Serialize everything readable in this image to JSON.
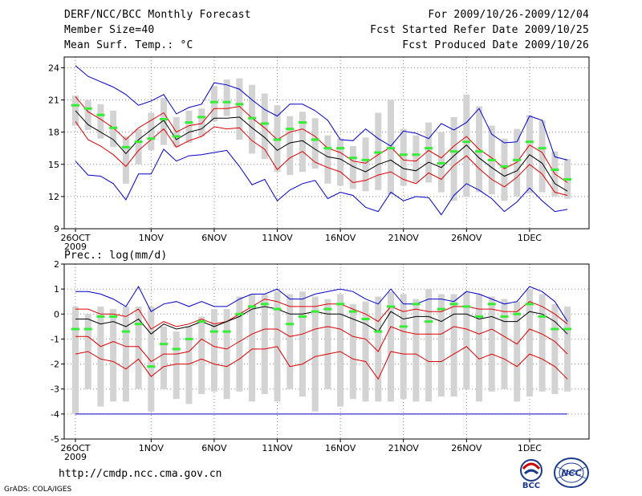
{
  "header": {
    "title": "DERF/NCC/BCC Monthly Forecast",
    "member_size": "Member Size=40",
    "variable": "Mean Surf. Temp.: °C",
    "period": "For 2009/10/26-2009/12/04",
    "started": "Fcst Started Refer Date 2009/10/25",
    "produced": "Fcst Produced Date 2009/10/26"
  },
  "footer": {
    "url": "http://cmdp.ncc.cma.gov.cn",
    "grads": "GrADS: COLA/IGES",
    "logo_bcc": "BCC",
    "logo_ncc": "NCC"
  },
  "colors": {
    "box": "#d3d3d3",
    "median": "#33ee33",
    "mean": "#000000",
    "spread": "#dd0000",
    "extreme": "#0000cc",
    "grid": "#888888"
  },
  "chart_data": [
    {
      "type": "line",
      "title": "Mean Surf. Temp.: °C",
      "ylim": [
        9,
        25
      ],
      "yticks": [
        9,
        12,
        15,
        18,
        21,
        24
      ],
      "x_start": 0,
      "xticks": [
        {
          "day": 0,
          "label": "26OCT",
          "sub": "2009"
        },
        {
          "day": 6,
          "label": "1NOV"
        },
        {
          "day": 11,
          "label": "6NOV"
        },
        {
          "day": 16,
          "label": "11NOV"
        },
        {
          "day": 21,
          "label": "16NOV"
        },
        {
          "day": 26,
          "label": "21NOV"
        },
        {
          "day": 31,
          "label": "26NOV"
        },
        {
          "day": 36,
          "label": "1DEC"
        }
      ],
      "grid": true,
      "days": [
        0,
        1,
        2,
        3,
        4,
        5,
        6,
        7,
        8,
        9,
        10,
        11,
        12,
        13,
        14,
        15,
        16,
        17,
        18,
        19,
        20,
        21,
        22,
        23,
        24,
        25,
        26,
        27,
        28,
        29,
        30,
        31,
        32,
        33,
        34,
        35,
        36,
        37,
        38,
        39
      ],
      "box_low": [
        18.6,
        18.2,
        17.4,
        16.6,
        13.2,
        15.0,
        16.3,
        16.8,
        16.6,
        17.0,
        17.6,
        19.0,
        19.5,
        17.3,
        16.0,
        15.5,
        14.3,
        14.0,
        14.3,
        14.6,
        13.2,
        13.0,
        12.7,
        12.5,
        12.6,
        12.2,
        13.0,
        13.3,
        13.3,
        12.4,
        11.6,
        12.0,
        12.4,
        12.2,
        11.6,
        12.0,
        12.3,
        12.4,
        12.0,
        11.8
      ],
      "box_high": [
        21.4,
        21.0,
        20.6,
        20.0,
        17.6,
        18.3,
        19.8,
        21.2,
        19.4,
        20.0,
        20.2,
        22.3,
        22.9,
        23.0,
        22.4,
        21.6,
        20.5,
        19.5,
        19.9,
        19.3,
        17.7,
        17.4,
        16.7,
        17.5,
        19.8,
        21.0,
        18.3,
        17.7,
        18.9,
        18.0,
        19.4,
        21.5,
        20.4,
        18.6,
        17.4,
        18.3,
        19.6,
        19.1,
        16.2,
        15.5
      ],
      "median": [
        20.5,
        20.2,
        19.6,
        18.4,
        16.6,
        17.1,
        17.4,
        19.2,
        17.6,
        18.9,
        19.4,
        20.8,
        20.8,
        20.6,
        19.3,
        18.8,
        17.3,
        18.3,
        18.9,
        17.3,
        16.5,
        16.5,
        15.6,
        15.4,
        16.1,
        16.5,
        15.9,
        15.9,
        16.5,
        15.1,
        16.2,
        17.1,
        16.2,
        15.4,
        14.8,
        15.4,
        17.1,
        16.5,
        14.5,
        13.6
      ],
      "series": [
        {
          "name": "max",
          "role": "extreme",
          "values": [
            24.2,
            23.2,
            22.7,
            22.2,
            21.5,
            20.5,
            20.9,
            21.5,
            19.7,
            20.3,
            20.6,
            22.6,
            22.4,
            22.0,
            21.0,
            20.1,
            19.5,
            20.6,
            20.6,
            20.0,
            19.1,
            17.3,
            17.2,
            18.3,
            17.4,
            16.7,
            18.1,
            17.9,
            17.4,
            18.8,
            18.2,
            18.9,
            20.2,
            17.8,
            17.0,
            17.1,
            19.5,
            19.1,
            15.7,
            15.4
          ]
        },
        {
          "name": "mean+sd",
          "role": "spread",
          "values": [
            21.3,
            19.9,
            19.2,
            18.4,
            17.3,
            18.4,
            19.1,
            19.8,
            18.0,
            18.6,
            18.8,
            20.2,
            20.2,
            20.4,
            19.3,
            18.4,
            17.3,
            18.0,
            18.3,
            17.6,
            16.5,
            16.1,
            15.3,
            15.1,
            15.9,
            16.6,
            15.4,
            15.3,
            16.3,
            15.6,
            16.7,
            17.6,
            16.4,
            15.6,
            14.6,
            15.2,
            16.8,
            16.1,
            14.1,
            13.3
          ]
        },
        {
          "name": "mean",
          "role": "mean",
          "values": [
            20.0,
            18.7,
            18.0,
            17.3,
            16.0,
            17.3,
            18.2,
            19.1,
            17.3,
            18.0,
            18.3,
            19.3,
            19.3,
            19.4,
            18.4,
            17.5,
            16.3,
            17.0,
            17.2,
            16.4,
            15.7,
            15.5,
            14.8,
            14.3,
            15.0,
            15.4,
            14.6,
            14.4,
            15.2,
            14.7,
            15.8,
            16.8,
            15.6,
            14.7,
            13.9,
            14.4,
            15.9,
            15.1,
            13.2,
            12.5
          ]
        },
        {
          "name": "mean-sd",
          "role": "spread",
          "values": [
            19.0,
            17.3,
            16.7,
            15.9,
            14.8,
            16.3,
            17.3,
            18.3,
            16.6,
            17.2,
            17.6,
            18.5,
            18.3,
            18.4,
            17.2,
            16.4,
            14.5,
            15.6,
            16.2,
            15.2,
            14.7,
            14.3,
            13.3,
            13.5,
            14.0,
            14.3,
            13.6,
            13.2,
            14.2,
            13.6,
            14.9,
            15.8,
            14.6,
            13.6,
            12.9,
            13.8,
            15.0,
            14.1,
            12.4,
            12.1
          ]
        },
        {
          "name": "min",
          "role": "extreme",
          "values": [
            15.3,
            14.0,
            13.9,
            13.2,
            11.7,
            14.1,
            14.1,
            16.4,
            15.3,
            15.8,
            15.9,
            16.1,
            16.3,
            14.8,
            13.1,
            13.6,
            11.6,
            12.6,
            13.2,
            13.5,
            11.8,
            12.4,
            12.1,
            11.0,
            10.6,
            12.4,
            11.6,
            12.0,
            11.9,
            10.3,
            12.1,
            13.2,
            12.6,
            11.8,
            10.6,
            11.5,
            12.8,
            11.6,
            10.6,
            10.8
          ]
        }
      ]
    },
    {
      "type": "line",
      "title": "Prec.: log(mm/d)",
      "ylim": [
        -5,
        2
      ],
      "yticks": [
        -5,
        -4,
        -3,
        -2,
        -1,
        0,
        1,
        2
      ],
      "x_start": 0,
      "xticks": [
        {
          "day": 0,
          "label": "26OCT",
          "sub": "2009"
        },
        {
          "day": 6,
          "label": "1NOV"
        },
        {
          "day": 11,
          "label": "6NOV"
        },
        {
          "day": 16,
          "label": "11NOV"
        },
        {
          "day": 21,
          "label": "16NOV"
        },
        {
          "day": 26,
          "label": "21NOV"
        },
        {
          "day": 31,
          "label": "26NOV"
        },
        {
          "day": 36,
          "label": "1DEC"
        }
      ],
      "grid": true,
      "floor": -4,
      "days": [
        0,
        1,
        2,
        3,
        4,
        5,
        6,
        7,
        8,
        9,
        10,
        11,
        12,
        13,
        14,
        15,
        16,
        17,
        18,
        19,
        20,
        21,
        22,
        23,
        24,
        25,
        26,
        27,
        28,
        29,
        30,
        31,
        32,
        33,
        34,
        35,
        36,
        37,
        38,
        39
      ],
      "box_low": [
        -4.0,
        -3.0,
        -3.7,
        -3.5,
        -3.5,
        -3.0,
        -3.9,
        -3.0,
        -3.4,
        -3.6,
        -3.2,
        -3.1,
        -3.4,
        -3.1,
        -3.5,
        -3.2,
        -3.5,
        -3.0,
        -3.3,
        -3.9,
        -3.0,
        -3.7,
        -3.4,
        -3.5,
        -3.5,
        -3.5,
        -3.4,
        -3.5,
        -3.5,
        -3.3,
        -3.3,
        -3.0,
        -3.5,
        -3.1,
        -3.0,
        -3.5,
        -3.3,
        -3.1,
        -3.2,
        -3.1
      ],
      "box_high": [
        0.3,
        0.0,
        0.3,
        0.2,
        0.3,
        0.3,
        0.3,
        -0.5,
        -0.7,
        -0.5,
        -0.1,
        0.2,
        0.2,
        0.7,
        0.8,
        0.8,
        0.9,
        0.8,
        0.9,
        0.7,
        0.6,
        0.8,
        0.4,
        0.5,
        0.7,
        0.9,
        0.8,
        0.6,
        1.0,
        0.8,
        0.8,
        0.9,
        0.8,
        0.7,
        0.6,
        0.5,
        1.0,
        0.8,
        0.4,
        0.3
      ],
      "median": [
        -0.6,
        -0.6,
        -0.1,
        -0.1,
        -0.7,
        -0.4,
        -2.1,
        -1.2,
        -1.4,
        -1.0,
        -0.3,
        -0.7,
        -0.7,
        0.0,
        0.3,
        0.4,
        0.2,
        -0.4,
        -0.1,
        0.1,
        0.2,
        0.4,
        0.1,
        -0.2,
        -0.7,
        0.3,
        -0.5,
        0.4,
        -0.3,
        0.2,
        0.4,
        0.3,
        -0.1,
        0.4,
        -0.1,
        0.0,
        0.4,
        -0.1,
        -0.6,
        -0.6
      ],
      "series": [
        {
          "name": "max",
          "role": "extreme",
          "values": [
            0.9,
            0.9,
            0.8,
            0.6,
            0.3,
            1.1,
            0.1,
            0.4,
            0.5,
            0.3,
            0.5,
            0.3,
            0.3,
            0.6,
            0.8,
            0.8,
            1.0,
            0.6,
            0.6,
            0.8,
            0.9,
            1.0,
            0.9,
            0.6,
            0.4,
            1.0,
            0.4,
            0.4,
            0.6,
            0.6,
            0.5,
            0.9,
            0.8,
            0.6,
            0.4,
            0.5,
            1.1,
            0.9,
            0.5,
            -0.3
          ]
        },
        {
          "name": "mean+sd",
          "role": "spread",
          "values": [
            0.2,
            0.2,
            0.0,
            0.0,
            -0.1,
            0.2,
            -0.6,
            -0.3,
            -0.5,
            -0.4,
            -0.2,
            -0.4,
            -0.3,
            0.0,
            0.3,
            0.6,
            0.5,
            0.3,
            0.3,
            0.3,
            0.4,
            0.4,
            0.2,
            0.0,
            -0.3,
            0.3,
            0.1,
            0.2,
            0.1,
            0.1,
            0.3,
            0.3,
            0.2,
            0.2,
            0.1,
            0.1,
            0.5,
            0.3,
            0.0,
            -0.4
          ]
        },
        {
          "name": "mean",
          "role": "mean",
          "values": [
            -0.2,
            -0.2,
            -0.4,
            -0.3,
            -0.5,
            -0.2,
            -0.8,
            -0.4,
            -0.6,
            -0.5,
            -0.3,
            -0.5,
            -0.3,
            -0.1,
            0.2,
            0.3,
            0.2,
            0.0,
            0.0,
            0.1,
            0.0,
            0.0,
            -0.2,
            -0.4,
            -0.7,
            0.1,
            -0.2,
            -0.1,
            -0.1,
            -0.3,
            0.0,
            0.0,
            -0.2,
            -0.1,
            -0.3,
            -0.3,
            0.1,
            0.0,
            -0.3,
            -0.8
          ]
        },
        {
          "name": "mean-sd",
          "role": "spread",
          "values": [
            -0.9,
            -0.9,
            -1.3,
            -1.1,
            -1.3,
            -1.3,
            -1.9,
            -1.6,
            -1.6,
            -1.5,
            -1.0,
            -1.3,
            -1.4,
            -1.1,
            -0.8,
            -0.6,
            -0.6,
            -0.9,
            -0.8,
            -0.6,
            -0.5,
            -0.6,
            -0.9,
            -1.0,
            -1.5,
            -0.5,
            -0.7,
            -0.8,
            -0.8,
            -0.8,
            -0.5,
            -0.6,
            -0.8,
            -0.6,
            -0.9,
            -1.2,
            -0.6,
            -0.8,
            -1.1,
            -1.6
          ]
        },
        {
          "name": "mean-2sd",
          "role": "spread",
          "values": [
            -1.6,
            -1.5,
            -1.8,
            -1.9,
            -2.2,
            -1.8,
            -2.5,
            -2.1,
            -2.0,
            -2.0,
            -1.8,
            -2.0,
            -2.1,
            -1.8,
            -1.4,
            -1.4,
            -1.3,
            -2.1,
            -2.0,
            -1.7,
            -1.6,
            -1.5,
            -1.8,
            -1.9,
            -2.6,
            -1.5,
            -1.6,
            -1.6,
            -1.9,
            -1.9,
            -1.6,
            -1.3,
            -1.8,
            -1.6,
            -1.8,
            -2.1,
            -1.6,
            -1.8,
            -2.1,
            -2.6
          ]
        }
      ]
    }
  ]
}
